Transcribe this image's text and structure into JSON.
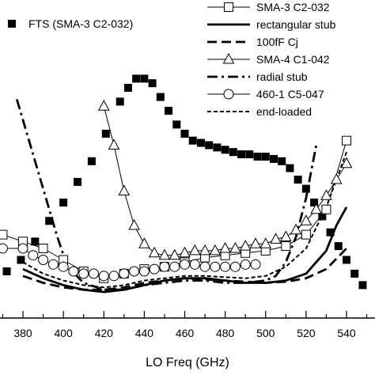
{
  "chart_data": {
    "type": "line",
    "xlabel": "LO Freq (GHz)",
    "ylabel": "",
    "title": "",
    "xlim": [
      370,
      550
    ],
    "x_ticks": [
      380,
      400,
      420,
      440,
      460,
      480,
      500,
      520,
      540
    ],
    "grid": false,
    "legend_position": "top-right",
    "series": [
      {
        "name": "FTS (SMA-3 C2-032)",
        "style": "square-filled-markers",
        "x": [
          372,
          379,
          386,
          393,
          400,
          407,
          414,
          421,
          428,
          432,
          436,
          440,
          444,
          448,
          452,
          456,
          460,
          464,
          468,
          472,
          476,
          480,
          484,
          488,
          492,
          496,
          500,
          504,
          508,
          512,
          516,
          520,
          524,
          528,
          532,
          536,
          540,
          544,
          548
        ],
        "y": [
          10,
          15,
          23,
          32,
          40,
          49,
          58,
          70,
          84,
          90,
          94,
          94,
          92,
          86,
          80,
          74,
          70,
          67,
          66,
          65,
          64,
          63,
          62,
          61,
          61,
          60,
          60,
          59,
          58,
          55,
          50,
          46,
          40,
          34,
          27,
          21,
          15,
          9,
          4
        ]
      },
      {
        "name": "SMA-3 C2-032",
        "style": "thin-solid-open-squares",
        "x": [
          370,
          380,
          390,
          400,
          410,
          420,
          430,
          440,
          450,
          460,
          470,
          480,
          490,
          500,
          510,
          520,
          530,
          540
        ],
        "y": [
          26,
          23,
          20,
          15,
          10,
          7,
          9,
          11,
          12,
          14,
          16,
          17,
          18,
          19,
          21,
          26,
          37,
          67
        ]
      },
      {
        "name": "rectangular stub",
        "style": "thick-solid",
        "x": [
          380,
          390,
          400,
          410,
          420,
          430,
          440,
          450,
          460,
          470,
          480,
          490,
          500,
          505,
          510,
          520,
          530,
          535,
          540
        ],
        "y": [
          11,
          7,
          4,
          2,
          1,
          2,
          4,
          6,
          7,
          7,
          6,
          5,
          5,
          5.5,
          6,
          9,
          19,
          30,
          38
        ]
      },
      {
        "name": "100fF Cj",
        "style": "thick-dashed",
        "x": [
          380,
          390,
          400,
          410,
          420,
          430,
          440,
          450,
          460,
          470,
          480,
          490,
          500,
          510,
          520,
          530,
          540
        ],
        "y": [
          8,
          5,
          3,
          2,
          2,
          3,
          5,
          6,
          7,
          6.5,
          6,
          5.5,
          5,
          5.5,
          7,
          11,
          20
        ]
      },
      {
        "name": "SMA-4 C1-042",
        "style": "thin-solid-open-triangles",
        "x": [
          420,
          425,
          430,
          435,
          440,
          445,
          450,
          455,
          460,
          465,
          470,
          475,
          480,
          485,
          490,
          495,
          500,
          505,
          510,
          515,
          520,
          525,
          530,
          535,
          540
        ],
        "y": [
          82,
          65,
          45,
          30,
          22,
          18,
          17,
          17,
          18,
          19,
          19,
          19,
          20,
          20,
          21,
          22,
          22,
          24,
          25,
          28,
          32,
          37,
          43,
          50,
          57
        ]
      },
      {
        "name": "radial stub",
        "style": "thick-dash-dot",
        "x": [
          377,
          382,
          387,
          392,
          397,
          402,
          410,
          420,
          430,
          440,
          450,
          460,
          470,
          480,
          490,
          500,
          505,
          510,
          515,
          520,
          525
        ],
        "y": [
          85,
          70,
          55,
          40,
          25,
          12,
          5,
          2,
          2,
          4,
          5,
          6,
          6,
          5,
          5,
          6,
          8,
          14,
          25,
          42,
          65
        ]
      },
      {
        "name": "460-1 C5-047",
        "style": "thin-solid-open-circles",
        "x": [
          370,
          380,
          385,
          390,
          395,
          400,
          405,
          410,
          415,
          420,
          425,
          430,
          435,
          440,
          445,
          450,
          455,
          460,
          465,
          470,
          475,
          480,
          485,
          490,
          495
        ],
        "y": [
          20,
          20,
          17,
          15,
          13,
          12,
          10,
          9,
          9,
          8,
          8,
          9,
          10,
          10,
          11,
          12,
          12,
          13,
          13,
          12,
          12,
          12,
          12,
          13,
          13
        ]
      },
      {
        "name": "end-loaded",
        "style": "short-dashed",
        "x": [
          380,
          390,
          400,
          410,
          420,
          430,
          440,
          450,
          460,
          470,
          480,
          490,
          500,
          510,
          520,
          530,
          540
        ],
        "y": [
          14,
          9,
          6,
          4,
          3,
          4,
          6,
          7,
          8,
          8,
          7.5,
          7,
          8,
          12,
          20,
          38,
          62
        ]
      }
    ]
  }
}
